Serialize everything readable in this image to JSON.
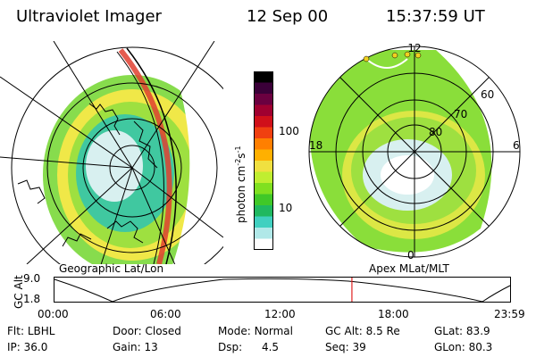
{
  "header": {
    "instrument": "Ultraviolet Imager",
    "date": "12 Sep 00",
    "time": "15:37:59 UT"
  },
  "colorbar": {
    "label": "photon cm",
    "label_exp1": "-2",
    "label_mid": "s",
    "label_exp2": "-1",
    "ticks": [
      "100",
      "10"
    ],
    "colors": [
      "#000000",
      "#3a0038",
      "#6b0040",
      "#a00030",
      "#d0101a",
      "#f04010",
      "#ff7f00",
      "#ffb000",
      "#f0e040",
      "#c0ee30",
      "#80e020",
      "#40c828",
      "#20b860",
      "#40d0c0",
      "#b0e8e8",
      "#ffffff"
    ]
  },
  "left_map": {
    "caption": "Geographic Lat/Lon"
  },
  "right_map": {
    "caption": "Apex MLat/MLT",
    "mlt_labels": {
      "top": "12",
      "left": "18",
      "right": "6",
      "bottom": "0"
    },
    "lat_labels": [
      "60",
      "70",
      "80"
    ]
  },
  "altitude_plot": {
    "ylabel": "GC Alt",
    "ymax": "9.0",
    "ymin": "1.8",
    "xticks": [
      "00:00",
      "06:00",
      "12:00",
      "18:00",
      "23:59"
    ],
    "current_time_fraction": 0.6528
  },
  "info": {
    "flt_label": "Flt:",
    "flt_value": "LBHL",
    "ip_label": "IP:",
    "ip_value": "36.0",
    "door_label": "Door:",
    "door_value": "Closed",
    "gain_label": "Gain:",
    "gain_value": "13",
    "mode_label": "Mode:",
    "mode_value": "Normal",
    "dsp_label": "Dsp:",
    "dsp_value": "4.5",
    "gcalt_label": "GC Alt:",
    "gcalt_value": "8.5 Re",
    "seq_label": "Seq:",
    "seq_value": "39",
    "glat_label": "GLat:",
    "glat_value": "83.9",
    "glon_label": "GLon:",
    "glon_value": "80.3"
  }
}
